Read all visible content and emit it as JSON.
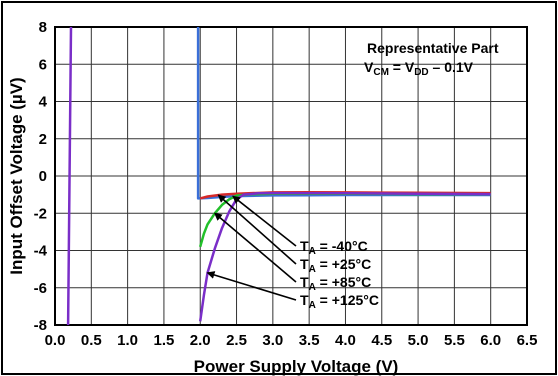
{
  "chart_data": {
    "type": "line",
    "title": "",
    "xlabel": "Power Supply Voltage (V)",
    "ylabel": "Input Offset Voltage (µV)",
    "xlim": [
      0,
      6.5
    ],
    "ylim": [
      -8,
      8
    ],
    "x_ticks": [
      "0.0",
      "0.5",
      "1.0",
      "1.5",
      "2.0",
      "2.5",
      "3.0",
      "3.5",
      "4.0",
      "4.5",
      "5.0",
      "5.5",
      "6.0",
      "6.5"
    ],
    "y_ticks": [
      "8",
      "6",
      "4",
      "2",
      "0",
      "-2",
      "-4",
      "-6",
      "-8"
    ],
    "grid": true,
    "note_lines": [
      "Representative Part",
      "VCM = VDD – 0.1V"
    ],
    "note": {
      "line1": "Representative Part",
      "v1": "V",
      "v1_sub": "CM",
      "eq": " = V",
      "v2_sub": "DD",
      "rest": " – 0.1V"
    },
    "series": [
      {
        "name": "TA = -40°C",
        "label_prefix": "T",
        "label_sub": "A",
        "label_value": " = -40°C",
        "color": "#3a6fd8",
        "points": [
          [
            1.97,
            8
          ],
          [
            1.97,
            -1.2
          ],
          [
            2.1,
            -1.18
          ],
          [
            2.3,
            -1.12
          ],
          [
            2.5,
            -1.08
          ],
          [
            3.0,
            -1.04
          ],
          [
            3.5,
            -1.03
          ],
          [
            4.0,
            -1.02
          ],
          [
            5.0,
            -1.02
          ],
          [
            6.0,
            -1.02
          ]
        ]
      },
      {
        "name": "TA = +25°C",
        "label_prefix": "T",
        "label_sub": "A",
        "label_value": " = +25°C",
        "color": "#d62a2a",
        "points": [
          [
            2.0,
            -1.2
          ],
          [
            2.1,
            -1.1
          ],
          [
            2.3,
            -1.0
          ],
          [
            2.5,
            -0.95
          ],
          [
            3.0,
            -0.88
          ],
          [
            3.5,
            -0.87
          ],
          [
            4.0,
            -0.88
          ],
          [
            5.0,
            -0.9
          ],
          [
            6.0,
            -0.92
          ]
        ]
      },
      {
        "name": "TA = +85°C",
        "label_prefix": "T",
        "label_sub": "A",
        "label_value": " = +85°C",
        "color": "#22c02a",
        "points": [
          [
            2.0,
            -3.8
          ],
          [
            2.05,
            -3.1
          ],
          [
            2.1,
            -2.6
          ],
          [
            2.2,
            -2.0
          ],
          [
            2.3,
            -1.55
          ],
          [
            2.4,
            -1.25
          ],
          [
            2.5,
            -1.05
          ],
          [
            2.7,
            -0.98
          ],
          [
            3.0,
            -0.95
          ],
          [
            4.0,
            -0.95
          ],
          [
            5.0,
            -0.97
          ],
          [
            6.0,
            -0.98
          ]
        ]
      },
      {
        "name": "TA = +125°C",
        "label_prefix": "T",
        "label_sub": "A",
        "label_value": " = +125°C",
        "color": "#7a2ec8",
        "points": [
          [
            0.18,
            -8
          ],
          [
            0.22,
            8
          ],
          null,
          [
            2.0,
            -7.8
          ],
          [
            2.05,
            -6.4
          ],
          [
            2.1,
            -5.2
          ],
          [
            2.2,
            -3.9
          ],
          [
            2.3,
            -2.8
          ],
          [
            2.4,
            -1.9
          ],
          [
            2.5,
            -1.25
          ],
          [
            2.6,
            -1.0
          ],
          [
            2.8,
            -0.93
          ],
          [
            3.0,
            -0.92
          ],
          [
            4.0,
            -0.93
          ],
          [
            5.0,
            -0.95
          ],
          [
            6.0,
            -0.97
          ]
        ]
      }
    ]
  }
}
